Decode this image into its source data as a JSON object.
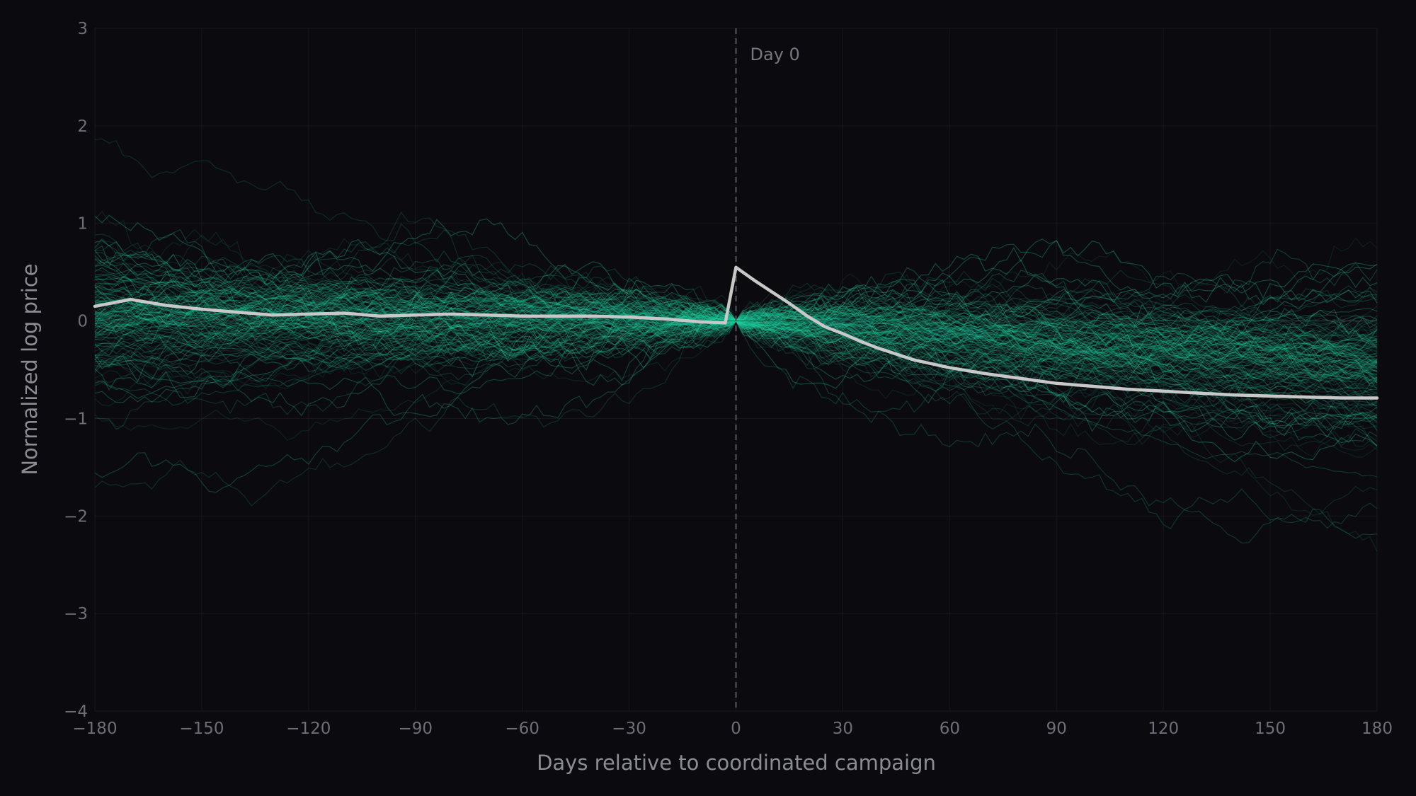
{
  "chart_data": {
    "type": "line",
    "title": "",
    "xlabel": "Days relative to coordinated campaign",
    "ylabel": "Normalized log price",
    "xlim": [
      -180,
      180
    ],
    "ylim": [
      -4,
      3
    ],
    "grid": true,
    "legend": "none",
    "x_ticks": [
      -180,
      -150,
      -120,
      -90,
      -60,
      -30,
      0,
      30,
      60,
      90,
      120,
      150,
      180
    ],
    "x_tick_labels": [
      "−180",
      "−150",
      "−120",
      "−90",
      "−60",
      "−30",
      "0",
      "30",
      "60",
      "90",
      "120",
      "150",
      "180"
    ],
    "y_ticks": [
      3,
      2,
      1,
      0,
      -1,
      -2,
      -3,
      -4
    ],
    "y_tick_labels": [
      "3",
      "2",
      "1",
      "0",
      "−1",
      "−2",
      "−3",
      "−4"
    ],
    "annotation": {
      "x": 0,
      "text": "Day 0"
    },
    "background_paths": {
      "count": 150,
      "color": "#1fd1a0"
    },
    "mean_series": {
      "color": "#c8c8c8",
      "x": [
        -180,
        -170,
        -160,
        -150,
        -140,
        -130,
        -120,
        -110,
        -100,
        -90,
        -80,
        -70,
        -60,
        -50,
        -40,
        -30,
        -20,
        -10,
        -3,
        0,
        5,
        10,
        15,
        20,
        25,
        30,
        35,
        40,
        45,
        50,
        55,
        60,
        70,
        80,
        90,
        100,
        110,
        120,
        130,
        140,
        150,
        160,
        170,
        180
      ],
      "y": [
        0.15,
        0.22,
        0.16,
        0.12,
        0.09,
        0.06,
        0.07,
        0.08,
        0.05,
        0.06,
        0.07,
        0.06,
        0.05,
        0.05,
        0.05,
        0.04,
        0.02,
        -0.01,
        -0.02,
        0.55,
        0.42,
        0.3,
        0.18,
        0.05,
        -0.06,
        -0.13,
        -0.21,
        -0.28,
        -0.34,
        -0.4,
        -0.44,
        -0.48,
        -0.54,
        -0.59,
        -0.64,
        -0.67,
        -0.7,
        -0.72,
        -0.74,
        -0.76,
        -0.77,
        -0.78,
        -0.79,
        -0.79
      ]
    }
  }
}
